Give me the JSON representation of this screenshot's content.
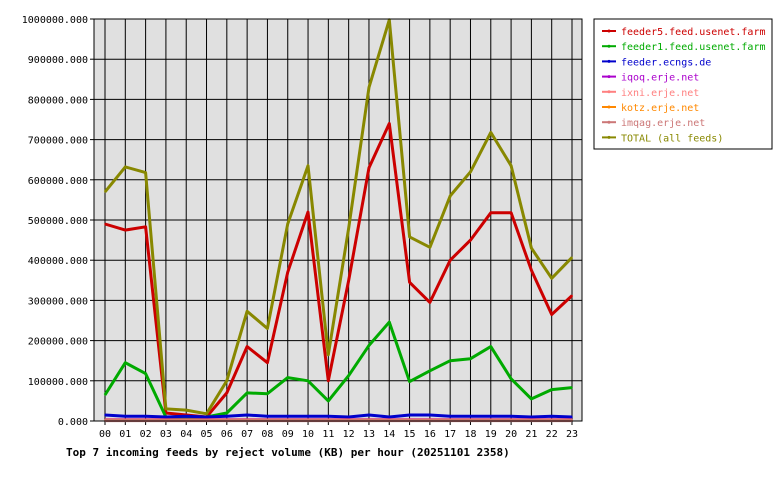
{
  "chart_data": {
    "type": "line",
    "title": "Top 7 incoming feeds by reject volume (KB) per hour (20251101 2358)",
    "xlabel": "",
    "ylabel": "",
    "ylim": [
      0,
      1000000
    ],
    "yticks": [
      "0.000",
      "100000.000",
      "200000.000",
      "300000.000",
      "400000.000",
      "500000.000",
      "600000.000",
      "700000.000",
      "800000.000",
      "900000.000",
      "1000000.000"
    ],
    "categories": [
      "00",
      "01",
      "02",
      "03",
      "04",
      "05",
      "06",
      "07",
      "08",
      "09",
      "10",
      "11",
      "12",
      "13",
      "14",
      "15",
      "16",
      "17",
      "18",
      "19",
      "20",
      "21",
      "22",
      "23"
    ],
    "grid": true,
    "legend_position": "right",
    "series": [
      {
        "name": "feeder5.feed.usenet.farm",
        "color": "#cc0000",
        "values": [
          490000,
          475000,
          483000,
          20000,
          15000,
          10000,
          70000,
          185000,
          145000,
          370000,
          520000,
          100000,
          350000,
          630000,
          740000,
          345000,
          295000,
          400000,
          450000,
          518000,
          518000,
          375000,
          265000,
          312000
        ]
      },
      {
        "name": "feeder1.feed.usenet.farm",
        "color": "#00aa00",
        "values": [
          65000,
          145000,
          118000,
          10000,
          10000,
          10000,
          20000,
          70000,
          68000,
          108000,
          100000,
          50000,
          113000,
          188000,
          246000,
          98000,
          125000,
          150000,
          155000,
          185000,
          105000,
          55000,
          78000,
          83000
        ]
      },
      {
        "name": "feeder.ecngs.de",
        "color": "#0000cc",
        "values": [
          15000,
          12000,
          12000,
          10000,
          12000,
          10000,
          12000,
          15000,
          12000,
          12000,
          12000,
          12000,
          10000,
          15000,
          10000,
          15000,
          15000,
          12000,
          12000,
          12000,
          12000,
          10000,
          12000,
          10000
        ]
      },
      {
        "name": "iqoq.erje.net",
        "color": "#aa00cc",
        "values": [
          3000,
          3000,
          3000,
          3000,
          3000,
          3000,
          3000,
          3000,
          3000,
          3000,
          3000,
          3000,
          3000,
          3000,
          3000,
          3000,
          3000,
          3000,
          3000,
          3000,
          3000,
          3000,
          3000,
          3000
        ]
      },
      {
        "name": "ixni.erje.net",
        "color": "#ff8080",
        "values": [
          2000,
          2000,
          2000,
          2000,
          2000,
          2000,
          2000,
          2000,
          2000,
          2000,
          2000,
          2000,
          2000,
          2000,
          2000,
          2000,
          2000,
          2000,
          2000,
          2000,
          2000,
          2000,
          2000,
          2000
        ]
      },
      {
        "name": "kotz.erje.net",
        "color": "#ff8800",
        "values": [
          2000,
          2000,
          2000,
          2000,
          2000,
          2000,
          2000,
          2000,
          2000,
          2000,
          2000,
          2000,
          2000,
          2000,
          2000,
          2000,
          2000,
          2000,
          2000,
          2000,
          2000,
          2000,
          2000,
          2000
        ]
      },
      {
        "name": "imqag.erje.net",
        "color": "#cc7777",
        "values": [
          1000,
          1000,
          1000,
          1000,
          1000,
          1000,
          1000,
          1000,
          1000,
          1000,
          1000,
          1000,
          1000,
          1000,
          1000,
          1000,
          1000,
          1000,
          1000,
          1000,
          1000,
          1000,
          1000,
          1000
        ]
      },
      {
        "name": "TOTAL (all feeds)",
        "color": "#888800",
        "values": [
          570000,
          632000,
          618000,
          30000,
          27000,
          18000,
          100000,
          273000,
          230000,
          490000,
          635000,
          165000,
          480000,
          830000,
          998000,
          458000,
          432000,
          560000,
          620000,
          718000,
          635000,
          430000,
          355000,
          407000
        ]
      }
    ]
  }
}
